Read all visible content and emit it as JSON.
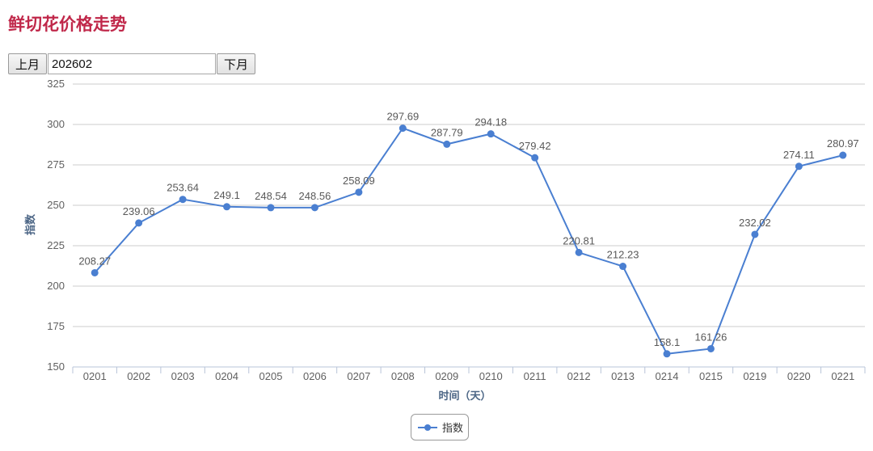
{
  "page": {
    "title": "鲜切花价格走势"
  },
  "month_nav": {
    "prev_label": "上月",
    "month_value": "202602",
    "next_label": "下月"
  },
  "colors": {
    "title": "#c0284a",
    "series": "#4a7fd1",
    "grid": "#cccccc",
    "axis_title": "#4b6585"
  },
  "chart_data": {
    "type": "line",
    "title": "",
    "xlabel": "时间（天）",
    "ylabel": "指数",
    "ylim": [
      150,
      325
    ],
    "yticks": [
      150,
      175,
      200,
      225,
      250,
      275,
      300,
      325
    ],
    "grid": true,
    "legend_position": "bottom-center",
    "categories": [
      "0201",
      "0202",
      "0203",
      "0204",
      "0205",
      "0206",
      "0207",
      "0208",
      "0209",
      "0210",
      "0211",
      "0212",
      "0213",
      "0214",
      "0215",
      "0219",
      "0220",
      "0221"
    ],
    "series": [
      {
        "name": "指数",
        "values": [
          208.27,
          239.06,
          253.64,
          249.1,
          248.54,
          248.56,
          258.09,
          297.69,
          287.79,
          294.18,
          279.42,
          220.81,
          212.23,
          158.1,
          161.26,
          232.02,
          274.11,
          280.97
        ],
        "labels": [
          "208.27",
          "239.06",
          "253.64",
          "249.1",
          "248.54",
          "248.56",
          "258.09",
          "297.69",
          "287.79",
          "294.18",
          "279.42",
          "220.81",
          "212.23",
          "158.1",
          "161.26",
          "232.02",
          "274.11",
          "280.97"
        ]
      }
    ]
  }
}
